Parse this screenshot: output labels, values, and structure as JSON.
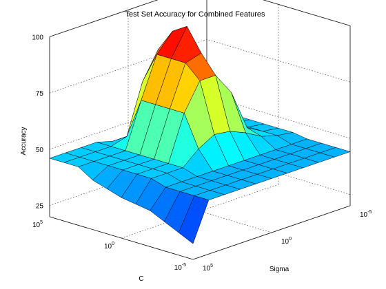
{
  "chart_data": {
    "type": "surface3d",
    "title": "Test Set Accuracy for Combined Features",
    "zlabel": "Accuracy",
    "xlabel": "C",
    "ylabel": "Sigma",
    "zlim": [
      20,
      100
    ],
    "zticks": [
      "100",
      "75",
      "50",
      "25"
    ],
    "c_ticks": [
      {
        "base": "10",
        "exp": "5"
      },
      {
        "base": "10",
        "exp": "0"
      },
      {
        "base": "10",
        "exp": "-5"
      }
    ],
    "sigma_ticks": [
      {
        "base": "10",
        "exp": "5"
      },
      {
        "base": "10",
        "exp": "0"
      },
      {
        "base": "10",
        "exp": "-5"
      }
    ],
    "grid": true,
    "colormap": "jet",
    "grid_note": "rows: C from 1e5 (row 0) to 1e-5 (row 10); columns: Sigma from 1e5 (col 0) to 1e-5 (col 10)",
    "z": [
      [
        46,
        46,
        46,
        46,
        44,
        44,
        44,
        44,
        44,
        44,
        44
      ],
      [
        46,
        46,
        46,
        46,
        48,
        70,
        82,
        66,
        50,
        46,
        45
      ],
      [
        46,
        46,
        46,
        46,
        66,
        84,
        92,
        72,
        50,
        46,
        45
      ],
      [
        42,
        46,
        46,
        46,
        66,
        84,
        96,
        72,
        50,
        46,
        45
      ],
      [
        40,
        46,
        46,
        46,
        66,
        84,
        86,
        70,
        50,
        46,
        45
      ],
      [
        38,
        46,
        46,
        46,
        66,
        78,
        78,
        68,
        50,
        46,
        45
      ],
      [
        37,
        46,
        46,
        46,
        52,
        56,
        55,
        52,
        48,
        46,
        45
      ],
      [
        36,
        44,
        44,
        44,
        44,
        44,
        44,
        44,
        44,
        44,
        44
      ],
      [
        33,
        44,
        44,
        44,
        44,
        44,
        44,
        44,
        44,
        44,
        44
      ],
      [
        30,
        44,
        44,
        44,
        44,
        44,
        44,
        44,
        44,
        44,
        44
      ],
      [
        27,
        44,
        44,
        44,
        44,
        44,
        44,
        44,
        44,
        44,
        44
      ]
    ]
  }
}
